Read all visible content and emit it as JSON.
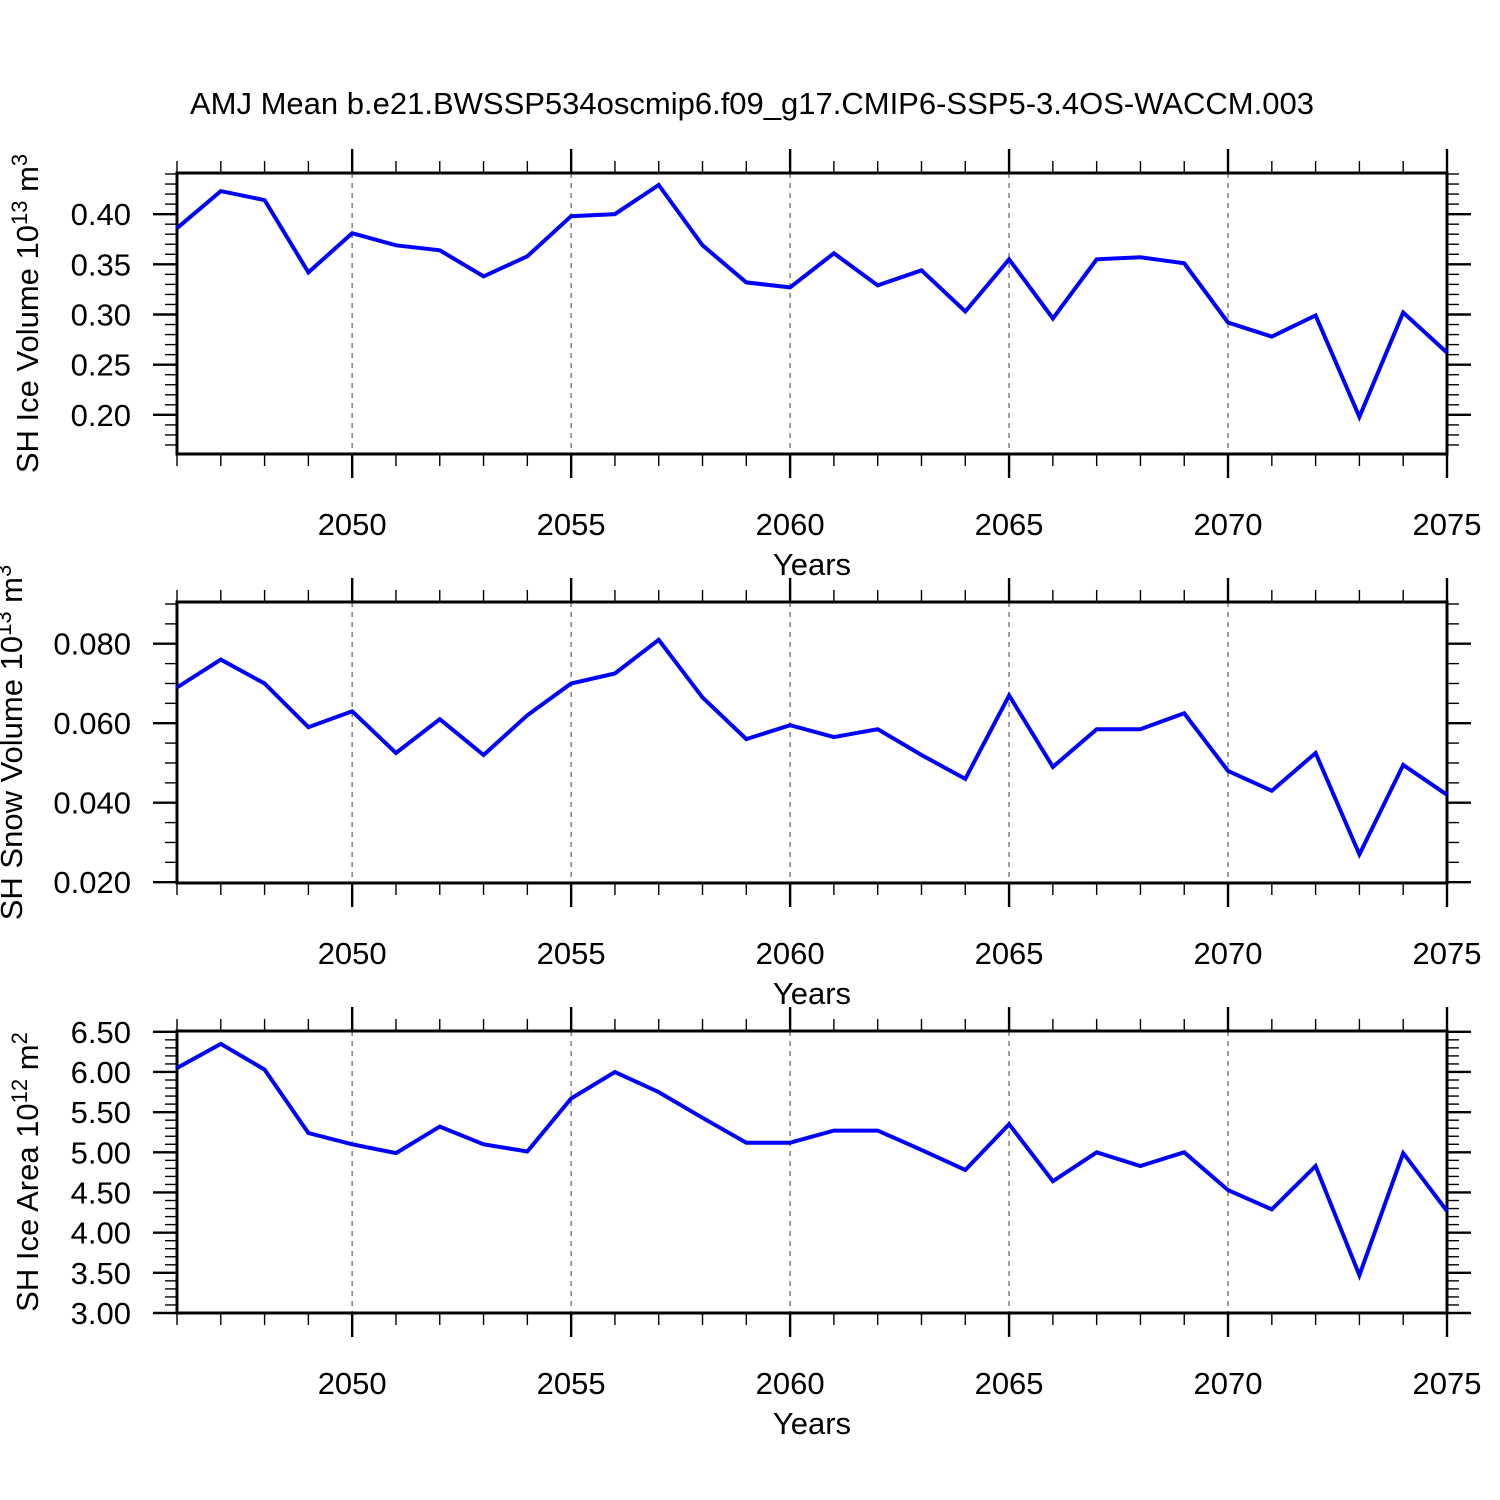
{
  "title": "AMJ Mean b.e21.BWSSP534oscmip6.f09_g17.CMIP6-SSP5-3.4OS-WACCM.003",
  "colors": {
    "line": "#0000ff",
    "axis": "#000000",
    "grid": "#7f7f7f",
    "background": "#ffffff"
  },
  "x_axis": {
    "label": "Years",
    "range": [
      2046,
      2075
    ],
    "major_ticks": [
      {
        "year": 2050,
        "label": "2050"
      },
      {
        "year": 2055,
        "label": "2055"
      },
      {
        "year": 2060,
        "label": "2060"
      },
      {
        "year": 2065,
        "label": "2065"
      },
      {
        "year": 2070,
        "label": "2070"
      },
      {
        "year": 2075,
        "label": "2075"
      }
    ],
    "minor_step": 1,
    "grid_years": [
      2050,
      2055,
      2060,
      2065,
      2070
    ]
  },
  "chart_data": [
    {
      "type": "line",
      "name": "sh-ice-volume",
      "ylabel": {
        "text": "SH Ice Volume 10¹³ m³",
        "base": "SH Ice Volume 10",
        "exp": "13",
        "unit_base": " m",
        "unit_exp": "3"
      },
      "xlabel": "Years",
      "ylim": [
        0.161,
        0.441
      ],
      "yticks": [
        {
          "v": 0.4,
          "label": "0.40"
        },
        {
          "v": 0.35,
          "label": "0.35"
        },
        {
          "v": 0.3,
          "label": "0.30"
        },
        {
          "v": 0.25,
          "label": "0.25"
        },
        {
          "v": 0.2,
          "label": "0.20"
        }
      ],
      "y_minor_step": 0.01,
      "x": [
        2046,
        2047,
        2048,
        2049,
        2050,
        2051,
        2052,
        2053,
        2054,
        2055,
        2056,
        2057,
        2058,
        2059,
        2060,
        2061,
        2062,
        2063,
        2064,
        2065,
        2066,
        2067,
        2068,
        2069,
        2070,
        2071,
        2072,
        2073,
        2074,
        2075
      ],
      "values": [
        0.386,
        0.423,
        0.414,
        0.342,
        0.381,
        0.369,
        0.364,
        0.338,
        0.358,
        0.398,
        0.4,
        0.429,
        0.369,
        0.332,
        0.327,
        0.361,
        0.329,
        0.344,
        0.303,
        0.355,
        0.296,
        0.355,
        0.357,
        0.351,
        0.292,
        0.278,
        0.299,
        0.198,
        0.302,
        0.262
      ]
    },
    {
      "type": "line",
      "name": "sh-snow-volume",
      "ylabel": {
        "text": "SH Snow Volume 10¹³ m³",
        "base": "SH Snow Volume 10",
        "exp": "13",
        "unit_base": " m",
        "unit_exp": "3"
      },
      "xlabel": "Years",
      "ylim": [
        0.0198,
        0.0905
      ],
      "yticks": [
        {
          "v": 0.08,
          "label": "0.080"
        },
        {
          "v": 0.06,
          "label": "0.060"
        },
        {
          "v": 0.04,
          "label": "0.040"
        },
        {
          "v": 0.02,
          "label": "0.020"
        }
      ],
      "y_minor_step": 0.005,
      "x": [
        2046,
        2047,
        2048,
        2049,
        2050,
        2051,
        2052,
        2053,
        2054,
        2055,
        2056,
        2057,
        2058,
        2059,
        2060,
        2061,
        2062,
        2063,
        2064,
        2065,
        2066,
        2067,
        2068,
        2069,
        2070,
        2071,
        2072,
        2073,
        2074,
        2075
      ],
      "values": [
        0.069,
        0.076,
        0.07,
        0.059,
        0.063,
        0.0525,
        0.061,
        0.052,
        0.062,
        0.07,
        0.0725,
        0.081,
        0.0665,
        0.056,
        0.0595,
        0.0565,
        0.0585,
        0.052,
        0.046,
        0.067,
        0.049,
        0.0585,
        0.0585,
        0.0625,
        0.048,
        0.043,
        0.0525,
        0.027,
        0.0495,
        0.042
      ]
    },
    {
      "type": "line",
      "name": "sh-ice-area",
      "ylabel": {
        "text": "SH Ice Area 10¹² m²",
        "base": "SH Ice Area 10",
        "exp": "12",
        "unit_base": " m",
        "unit_exp": "2"
      },
      "xlabel": "Years",
      "ylim": [
        3.0,
        6.51
      ],
      "yticks": [
        {
          "v": 6.5,
          "label": "6.50"
        },
        {
          "v": 6.0,
          "label": "6.00"
        },
        {
          "v": 5.5,
          "label": "5.50"
        },
        {
          "v": 5.0,
          "label": "5.00"
        },
        {
          "v": 4.5,
          "label": "4.50"
        },
        {
          "v": 4.0,
          "label": "4.00"
        },
        {
          "v": 3.5,
          "label": "3.50"
        },
        {
          "v": 3.0,
          "label": "3.00"
        }
      ],
      "y_minor_step": 0.1,
      "x": [
        2046,
        2047,
        2048,
        2049,
        2050,
        2051,
        2052,
        2053,
        2054,
        2055,
        2056,
        2057,
        2058,
        2059,
        2060,
        2061,
        2062,
        2063,
        2064,
        2065,
        2066,
        2067,
        2068,
        2069,
        2070,
        2071,
        2072,
        2073,
        2074,
        2075
      ],
      "values": [
        6.05,
        6.35,
        6.03,
        5.24,
        5.1,
        4.99,
        5.32,
        5.1,
        5.01,
        5.67,
        6.0,
        5.75,
        5.43,
        5.12,
        5.12,
        5.27,
        5.27,
        5.03,
        4.78,
        5.35,
        4.64,
        5.0,
        4.83,
        5.0,
        4.53,
        4.29,
        4.83,
        3.47,
        4.99,
        4.27
      ]
    }
  ]
}
